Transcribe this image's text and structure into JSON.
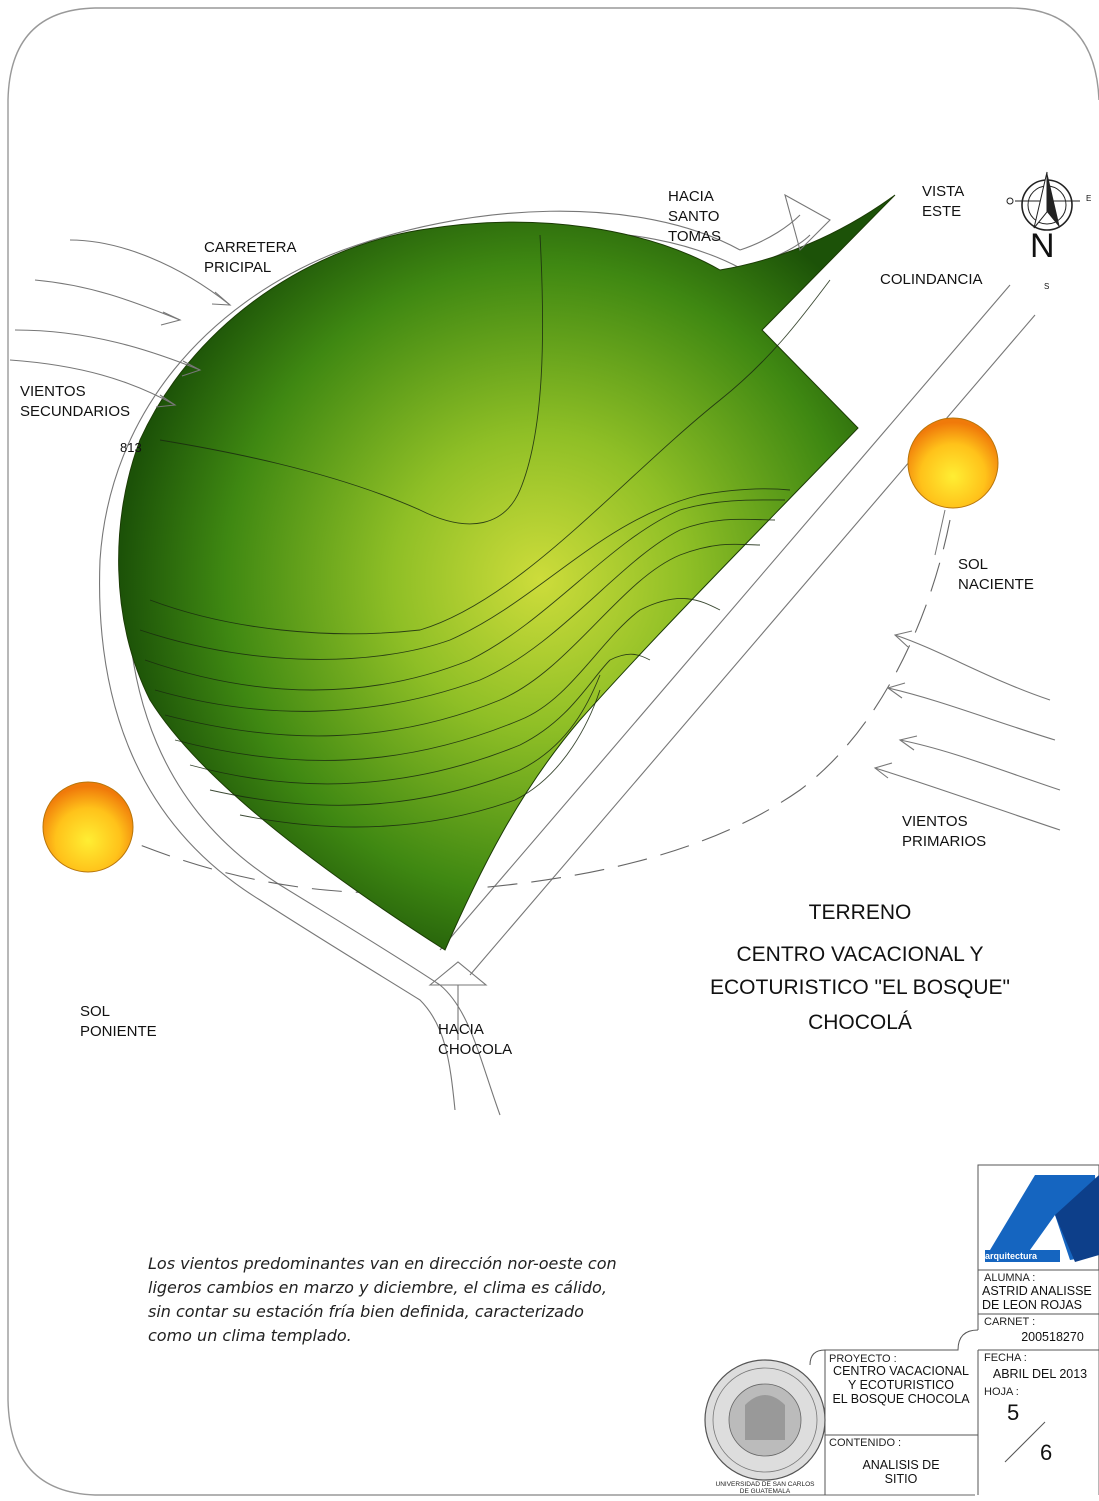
{
  "labels": {
    "hacia_santo_tomas": "HACIA\nSANTO\nTOMAS",
    "vista_este": "VISTA\nESTE",
    "carretera": "CARRETERA\nPRICIPAL",
    "colindancia": "COLINDANCIA",
    "vientos_secundarios": "VIENTOS\nSECUNDARIOS",
    "elevation": "813",
    "sol_naciente": "SOL\nNACIENTE",
    "vientos_primarios": "VIENTOS\nPRIMARIOS",
    "sol_poniente": "SOL\nPONIENTE",
    "hacia_chocola": "HACIA\nCHOCOLA",
    "north": "N",
    "east": "E",
    "south": "S"
  },
  "title": {
    "line1": "TERRENO",
    "line2": "CENTRO VACACIONAL Y",
    "line3": "ECOTURISTICO \"EL BOSQUE\"",
    "line4": "CHOCOLÁ"
  },
  "note": "Los vientos predominantes van en dirección nor-oeste con\nligeros cambios en marzo y diciembre,  el clima es cálido,\nsin contar su estación fría bien definida, caracterizado\ncomo un clima templado.",
  "title_block": {
    "logo_text": "arquitectura",
    "alumna_label": "ALUMNA :",
    "alumna_value": "ASTRID ANALISSE\nDE LEON ROJAS",
    "carnet_label": "CARNET :",
    "carnet_value": "200518270",
    "fecha_label": "FECHA :",
    "fecha_value": "ABRIL DEL 2013",
    "hoja_label": "HOJA :",
    "hoja_num": "5",
    "hoja_total": "6",
    "proyecto_label": "PROYECTO :",
    "proyecto_value": "CENTRO VACACIONAL\nY ECOTURISTICO\nEL BOSQUE CHOCOLA",
    "contenido_label": "CONTENIDO :",
    "contenido_value": "ANALISIS DE\nSITIO",
    "university": "UNIVERSIDAD DE SAN CARLOS\nDE GUATEMALA"
  },
  "colors": {
    "terrain_light": "#cddc3b",
    "terrain_dark": "#1c5208",
    "sun_center": "#ffee33",
    "sun_edge": "#f07a0a"
  }
}
